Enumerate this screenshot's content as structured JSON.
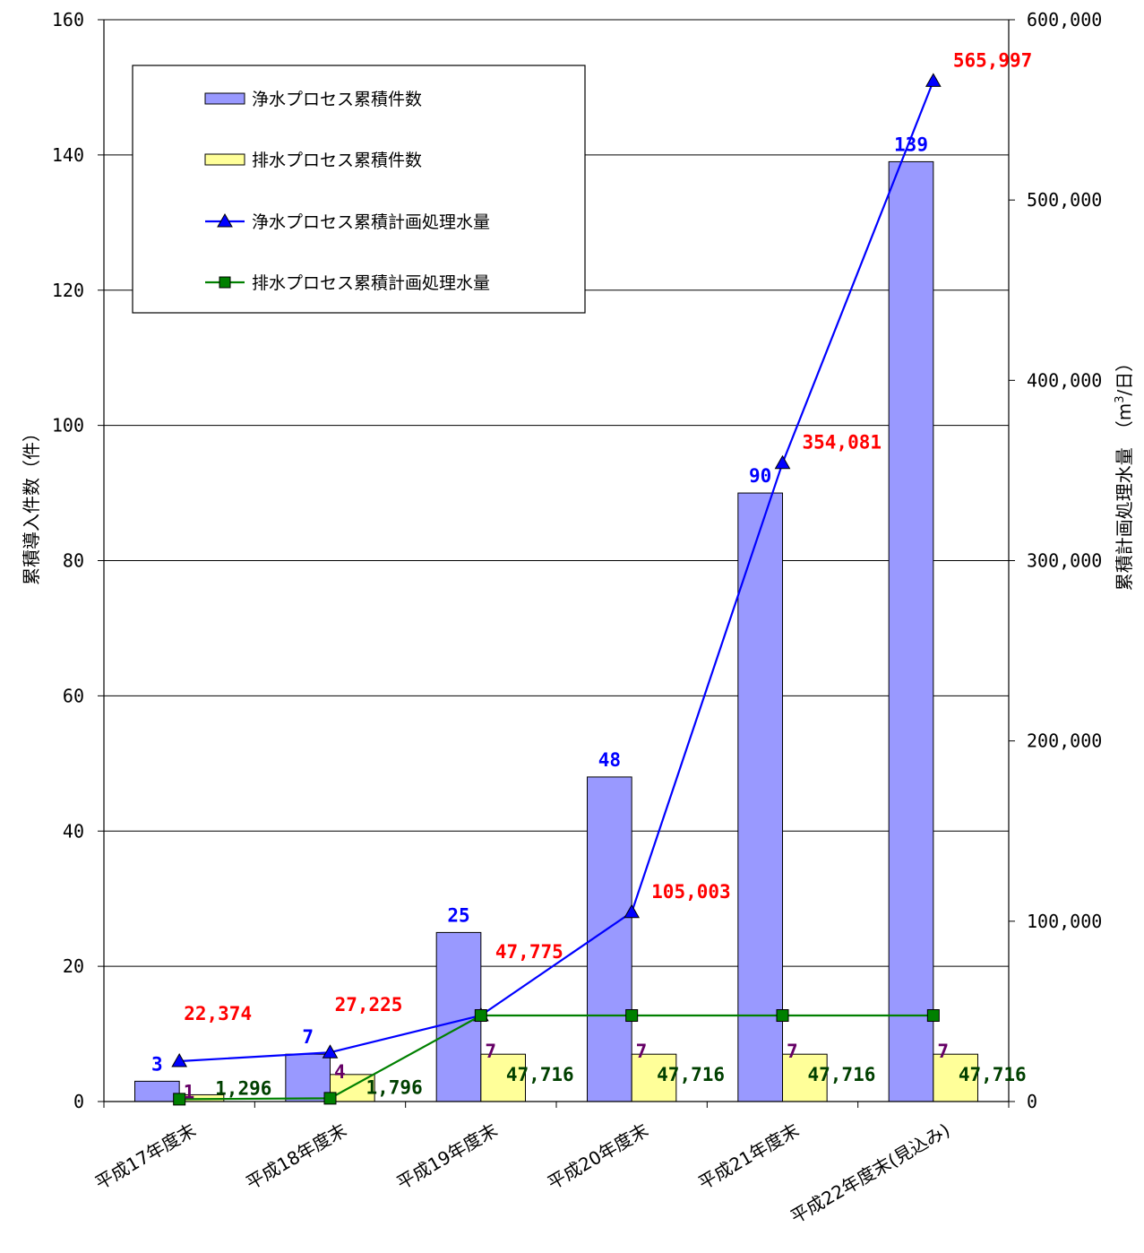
{
  "chart_data": {
    "type": "bar",
    "categories": [
      "平成17年度末",
      "平成18年度末",
      "平成19年度末",
      "平成20年度末",
      "平成21年度末",
      "平成22年度末(見込み)"
    ],
    "ylabel_left": "累積導入件数（件）",
    "ylabel_right": "累積計画処理水量　（m3/日）",
    "ylim_left": [
      0,
      160
    ],
    "ylim_right": [
      0,
      600000
    ],
    "yticks_left": [
      "0",
      "20",
      "40",
      "60",
      "80",
      "100",
      "120",
      "140",
      "160"
    ],
    "yticks_right": [
      "0",
      "100,000",
      "200,000",
      "300,000",
      "400,000",
      "500,000",
      "600,000"
    ],
    "grid": true,
    "legend_position": "top-left",
    "series": [
      {
        "name": "浄水プロセス累積件数",
        "type": "bar",
        "axis": "left",
        "color": "#9999FF",
        "values": [
          3,
          7,
          25,
          48,
          90,
          139
        ],
        "labels": [
          "3",
          "7",
          "25",
          "48",
          "90",
          "139"
        ],
        "label_color": "#0000FF"
      },
      {
        "name": "排水プロセス累積件数",
        "type": "bar",
        "axis": "left",
        "color": "#FFFF99",
        "values": [
          1,
          4,
          7,
          7,
          7,
          7
        ],
        "labels": [
          "1",
          "4",
          "7",
          "7",
          "7",
          "7"
        ],
        "label_color": "#660066"
      },
      {
        "name": "浄水プロセス累積計画処理水量",
        "type": "line",
        "axis": "right",
        "color": "#0000FF",
        "marker": "triangle",
        "values": [
          22374,
          27225,
          47775,
          105003,
          354081,
          565997
        ],
        "labels": [
          "22,374",
          "27,225",
          "47,775",
          "105,003",
          "354,081",
          "565,997"
        ],
        "label_color": "#FF0000"
      },
      {
        "name": "排水プロセス累積計画処理水量",
        "type": "line",
        "axis": "right",
        "color": "#008000",
        "marker": "square",
        "values": [
          1296,
          1796,
          47716,
          47716,
          47716,
          47716
        ],
        "labels": [
          "1,296",
          "1,796",
          "47,716",
          "47,716",
          "47,716",
          "47,716"
        ],
        "label_color": "#004000"
      }
    ]
  }
}
